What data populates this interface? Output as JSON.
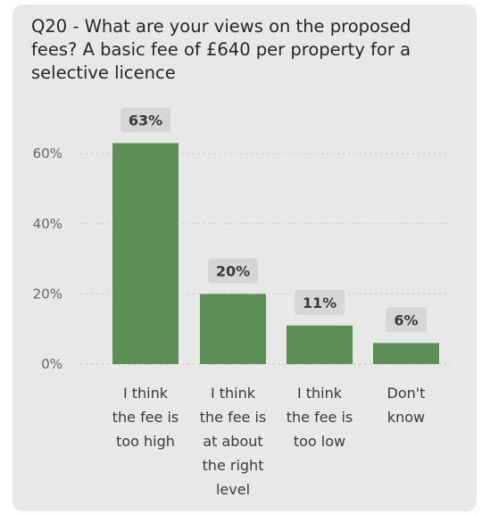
{
  "title": "Q20 - What are your views on the proposed fees? A basic fee of £640 per property for a selective licence",
  "colors": {
    "bar": "#5b8f56",
    "label_bg": "#d6d6d6",
    "card_bg": "#e8e8e8",
    "grid": "#c4c4c4"
  },
  "chart_data": {
    "type": "bar",
    "title": "Q20 - What are your views on the proposed fees? A basic fee of £640 per property for a selective licence",
    "xlabel": "",
    "ylabel": "",
    "categories": [
      [
        "I think",
        "the fee is",
        "too high"
      ],
      [
        "I think",
        "the fee is",
        "at about",
        "the right",
        "level"
      ],
      [
        "I think",
        "the fee is",
        "too low"
      ],
      [
        "Don't",
        "know"
      ]
    ],
    "values": [
      63,
      20,
      11,
      6
    ],
    "data_labels": [
      "63%",
      "20%",
      "11%",
      "6%"
    ],
    "ylim": [
      0,
      70
    ],
    "yticks": [
      0,
      20,
      40,
      60
    ],
    "ytick_labels": [
      "0%",
      "20%",
      "40%",
      "60%"
    ],
    "grid": true,
    "legend": "none"
  }
}
